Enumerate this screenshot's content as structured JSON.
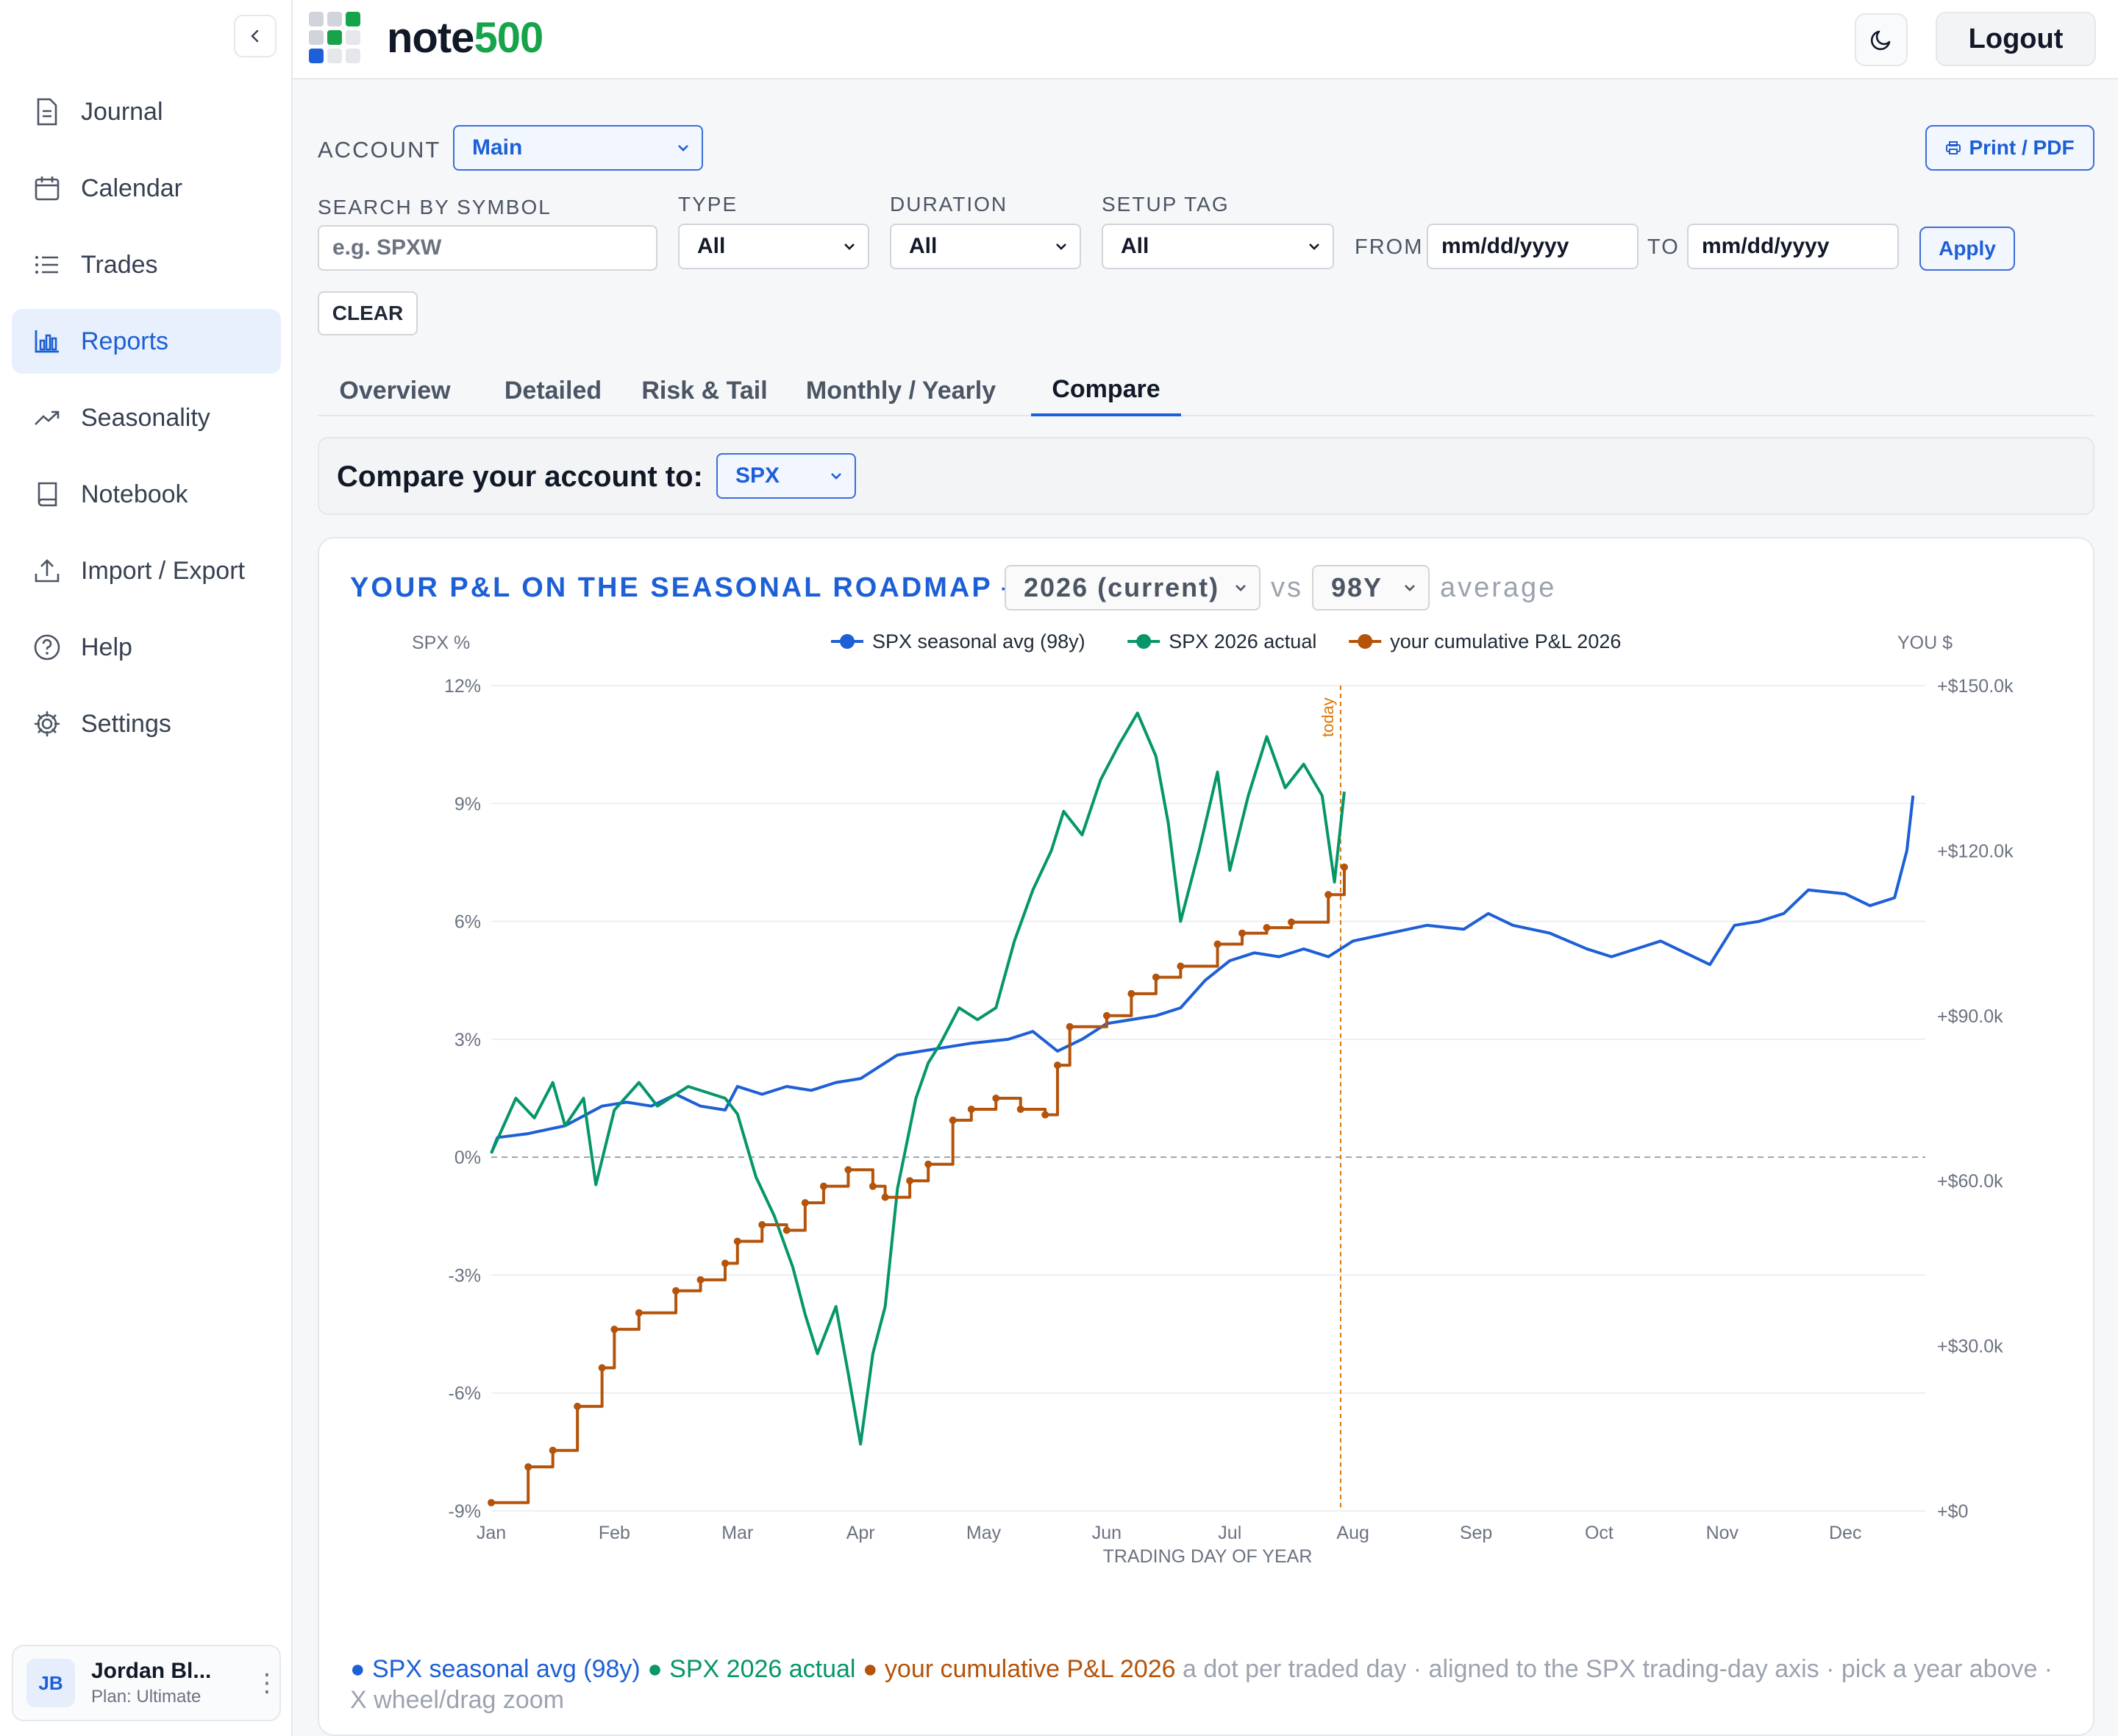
{
  "brand": {
    "part1": "note",
    "part2": "500"
  },
  "topbar": {
    "logout_label": "Logout"
  },
  "nav": [
    {
      "label": "Journal",
      "icon": "document-icon"
    },
    {
      "label": "Calendar",
      "icon": "calendar-icon"
    },
    {
      "label": "Trades",
      "icon": "list-icon"
    },
    {
      "label": "Reports",
      "icon": "bar-chart-icon",
      "active": true
    },
    {
      "label": "Seasonality",
      "icon": "trend-up-icon"
    },
    {
      "label": "Notebook",
      "icon": "book-icon"
    },
    {
      "label": "Import / Export",
      "icon": "upload-icon"
    },
    {
      "label": "Help",
      "icon": "help-icon"
    },
    {
      "label": "Settings",
      "icon": "gear-icon"
    }
  ],
  "user": {
    "initials": "JB",
    "name": "Jordan Bl...",
    "plan": "Plan: Ultimate"
  },
  "filters": {
    "account_label": "ACCOUNT",
    "account_value": "Main",
    "print_label": "Print / PDF",
    "symbol_label": "SEARCH BY SYMBOL",
    "symbol_placeholder": "e.g. SPXW",
    "type_label": "TYPE",
    "type_value": "All",
    "duration_label": "DURATION",
    "duration_value": "All",
    "setup_label": "SETUP TAG",
    "setup_value": "All",
    "from_label": "FROM",
    "from_value": "mm/dd/yyyy",
    "to_label": "TO",
    "to_value": "mm/dd/yyyy",
    "apply_label": "Apply",
    "clear_label": "CLEAR"
  },
  "tabs": [
    "Overview",
    "Detailed",
    "Risk & Tail",
    "Monthly / Yearly",
    "Compare"
  ],
  "active_tab": "Compare",
  "compare": {
    "label": "Compare your account to:",
    "value": "SPX"
  },
  "card": {
    "title": "YOUR P&L ON THE SEASONAL ROADMAP —",
    "year_value": "2026 (current)",
    "vs": "vs",
    "avg_value": "98Y",
    "avg_suffix": "average",
    "note_blue": "● SPX seasonal avg (98y)",
    "note_green": "● SPX 2026 actual",
    "note_orange": "● your cumulative P&L 2026",
    "note_rest": "a dot per traded day · aligned to the SPX trading-day axis · pick a year above · X wheel/drag zoom"
  },
  "colors": {
    "accent": "#1d5fd6",
    "green": "#059669",
    "orange": "#b45309",
    "brand_green": "#16a34a"
  },
  "chart_data": {
    "type": "line",
    "xlabel": "TRADING DAY OF YEAR",
    "ylabel_left": "SPX %",
    "ylabel_right": "YOU $",
    "x_ticks": [
      "Jan",
      "Feb",
      "Mar",
      "Apr",
      "May",
      "Jun",
      "Jul",
      "Aug",
      "Sep",
      "Oct",
      "Nov",
      "Dec"
    ],
    "y_left_ticks": [
      "12%",
      "9%",
      "6%",
      "3%",
      "0%",
      "-3%",
      "-6%",
      "-9%"
    ],
    "y_right_ticks": [
      "+$150.0k",
      "+$120.0k",
      "+$90.0k",
      "+$60.0k",
      "+$30.0k",
      "+$0"
    ],
    "ylim_left": [
      -9,
      12
    ],
    "ylim_right": [
      0,
      150000
    ],
    "today_label": "today",
    "today_month": 6.9,
    "legend_position": "top-center",
    "series": [
      {
        "name": "SPX seasonal avg (98y)",
        "color": "#1d5fd6",
        "axis": "left",
        "points": [
          [
            0,
            0.1
          ],
          [
            0.05,
            0.5
          ],
          [
            0.3,
            0.6
          ],
          [
            0.6,
            0.8
          ],
          [
            0.9,
            1.3
          ],
          [
            1.1,
            1.4
          ],
          [
            1.3,
            1.3
          ],
          [
            1.5,
            1.6
          ],
          [
            1.7,
            1.3
          ],
          [
            1.9,
            1.2
          ],
          [
            2.0,
            1.8
          ],
          [
            2.2,
            1.6
          ],
          [
            2.4,
            1.8
          ],
          [
            2.6,
            1.7
          ],
          [
            2.8,
            1.9
          ],
          [
            3.0,
            2.0
          ],
          [
            3.3,
            2.6
          ],
          [
            3.5,
            2.7
          ],
          [
            3.7,
            2.8
          ],
          [
            3.9,
            2.9
          ],
          [
            4.2,
            3.0
          ],
          [
            4.4,
            3.2
          ],
          [
            4.6,
            2.7
          ],
          [
            4.8,
            3.0
          ],
          [
            5.0,
            3.4
          ],
          [
            5.2,
            3.5
          ],
          [
            5.4,
            3.6
          ],
          [
            5.6,
            3.8
          ],
          [
            5.8,
            4.5
          ],
          [
            6.0,
            5.0
          ],
          [
            6.2,
            5.2
          ],
          [
            6.4,
            5.1
          ],
          [
            6.6,
            5.3
          ],
          [
            6.8,
            5.1
          ],
          [
            7.0,
            5.5
          ],
          [
            7.3,
            5.7
          ],
          [
            7.6,
            5.9
          ],
          [
            7.9,
            5.8
          ],
          [
            8.1,
            6.2
          ],
          [
            8.3,
            5.9
          ],
          [
            8.6,
            5.7
          ],
          [
            8.9,
            5.3
          ],
          [
            9.1,
            5.1
          ],
          [
            9.3,
            5.3
          ],
          [
            9.5,
            5.5
          ],
          [
            9.7,
            5.2
          ],
          [
            9.9,
            4.9
          ],
          [
            10.1,
            5.9
          ],
          [
            10.3,
            6.0
          ],
          [
            10.5,
            6.2
          ],
          [
            10.7,
            6.8
          ],
          [
            11.0,
            6.7
          ],
          [
            11.2,
            6.4
          ],
          [
            11.4,
            6.6
          ],
          [
            11.5,
            7.8
          ],
          [
            11.55,
            9.2
          ]
        ]
      },
      {
        "name": "SPX 2026 actual",
        "color": "#059669",
        "axis": "left",
        "points": [
          [
            0,
            0.1
          ],
          [
            0.2,
            1.5
          ],
          [
            0.35,
            1.0
          ],
          [
            0.5,
            1.9
          ],
          [
            0.6,
            0.8
          ],
          [
            0.75,
            1.5
          ],
          [
            0.85,
            -0.7
          ],
          [
            1.0,
            1.2
          ],
          [
            1.2,
            1.9
          ],
          [
            1.35,
            1.3
          ],
          [
            1.6,
            1.8
          ],
          [
            1.9,
            1.5
          ],
          [
            2.0,
            1.1
          ],
          [
            2.15,
            -0.5
          ],
          [
            2.3,
            -1.5
          ],
          [
            2.45,
            -2.8
          ],
          [
            2.55,
            -4.0
          ],
          [
            2.65,
            -5.0
          ],
          [
            2.8,
            -3.8
          ],
          [
            2.9,
            -5.5
          ],
          [
            3.0,
            -7.3
          ],
          [
            3.1,
            -5.0
          ],
          [
            3.2,
            -3.8
          ],
          [
            3.3,
            -0.8
          ],
          [
            3.45,
            1.5
          ],
          [
            3.55,
            2.4
          ],
          [
            3.65,
            2.9
          ],
          [
            3.8,
            3.8
          ],
          [
            3.95,
            3.5
          ],
          [
            4.1,
            3.8
          ],
          [
            4.25,
            5.5
          ],
          [
            4.4,
            6.8
          ],
          [
            4.55,
            7.8
          ],
          [
            4.65,
            8.8
          ],
          [
            4.8,
            8.2
          ],
          [
            4.95,
            9.6
          ],
          [
            5.1,
            10.5
          ],
          [
            5.25,
            11.3
          ],
          [
            5.4,
            10.2
          ],
          [
            5.5,
            8.5
          ],
          [
            5.6,
            6.0
          ],
          [
            5.75,
            7.8
          ],
          [
            5.9,
            9.8
          ],
          [
            6.0,
            7.3
          ],
          [
            6.15,
            9.2
          ],
          [
            6.3,
            10.7
          ],
          [
            6.45,
            9.4
          ],
          [
            6.6,
            10.0
          ],
          [
            6.75,
            9.2
          ],
          [
            6.85,
            7.0
          ],
          [
            6.93,
            9.3
          ]
        ]
      },
      {
        "name": "your cumulative P&L 2026",
        "color": "#b45309",
        "axis": "right",
        "points": [
          [
            0,
            1500
          ],
          [
            0.3,
            8000
          ],
          [
            0.5,
            11000
          ],
          [
            0.7,
            19000
          ],
          [
            0.9,
            26000
          ],
          [
            1.0,
            33000
          ],
          [
            1.2,
            36000
          ],
          [
            1.5,
            40000
          ],
          [
            1.7,
            42000
          ],
          [
            1.9,
            45000
          ],
          [
            2.0,
            49000
          ],
          [
            2.2,
            52000
          ],
          [
            2.4,
            51000
          ],
          [
            2.55,
            56000
          ],
          [
            2.7,
            59000
          ],
          [
            2.9,
            62000
          ],
          [
            3.1,
            59000
          ],
          [
            3.2,
            57000
          ],
          [
            3.4,
            60000
          ],
          [
            3.55,
            63000
          ],
          [
            3.75,
            71000
          ],
          [
            3.9,
            73000
          ],
          [
            4.1,
            75000
          ],
          [
            4.3,
            73000
          ],
          [
            4.5,
            72000
          ],
          [
            4.6,
            81000
          ],
          [
            4.7,
            88000
          ],
          [
            5.0,
            90000
          ],
          [
            5.2,
            94000
          ],
          [
            5.4,
            97000
          ],
          [
            5.6,
            99000
          ],
          [
            5.9,
            103000
          ],
          [
            6.1,
            105000
          ],
          [
            6.3,
            106000
          ],
          [
            6.5,
            107000
          ],
          [
            6.8,
            112000
          ],
          [
            6.93,
            117000
          ]
        ]
      }
    ]
  }
}
